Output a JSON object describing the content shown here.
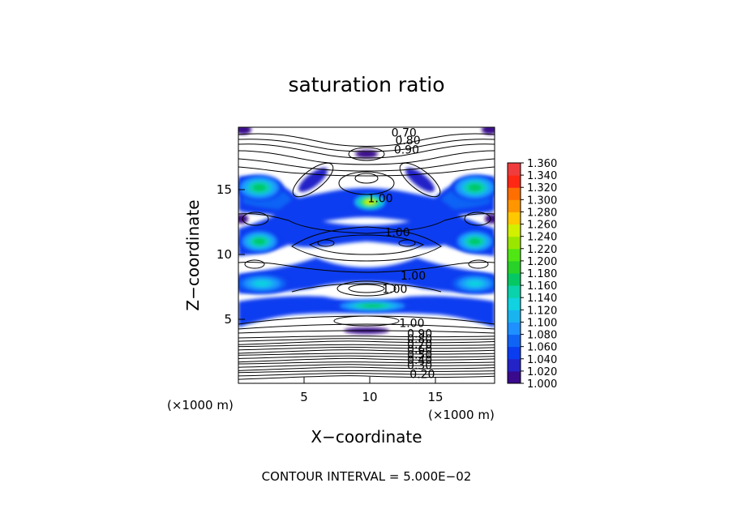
{
  "chart_data": {
    "type": "contour",
    "title": "saturation ratio",
    "xlabel": "X−coordinate",
    "ylabel": "Z−coordinate",
    "x_unit": "(×1000 m)",
    "z_unit": "(×1000 m)",
    "xlim": [
      0,
      19.5
    ],
    "ylim": [
      0,
      19.5
    ],
    "x_ticks": [
      "5",
      "10",
      "15"
    ],
    "y_ticks": [
      "5",
      "10",
      "15"
    ],
    "contour_interval_text": "CONTOUR INTERVAL = 5.000E−02",
    "colorbar": {
      "levels": [
        "1.000",
        "1.020",
        "1.040",
        "1.060",
        "1.080",
        "1.100",
        "1.120",
        "1.140",
        "1.160",
        "1.180",
        "1.200",
        "1.220",
        "1.240",
        "1.260",
        "1.280",
        "1.300",
        "1.320",
        "1.340",
        "1.360"
      ],
      "colors": [
        "#3a0a8c",
        "#2323c8",
        "#0a3cf0",
        "#0f64f5",
        "#1e90ff",
        "#19b4f0",
        "#10d2e0",
        "#0ad2aa",
        "#05c864",
        "#28d228",
        "#50e614",
        "#9be600",
        "#d2f000",
        "#ffc800",
        "#ff9600",
        "#ff6e00",
        "#ff2814",
        "#f03c3c",
        "#f08c8c"
      ]
    },
    "contour_labels": [
      {
        "text": "0.70",
        "x": 12.6,
        "z": 19.1
      },
      {
        "text": "0.80",
        "x": 12.9,
        "z": 18.5
      },
      {
        "text": "0.90",
        "x": 12.8,
        "z": 17.8
      },
      {
        "text": "1.00",
        "x": 10.8,
        "z": 14.1
      },
      {
        "text": "1.00",
        "x": 12.1,
        "z": 11.5
      },
      {
        "text": "1.00",
        "x": 13.3,
        "z": 8.2
      },
      {
        "text": "1.00",
        "x": 11.9,
        "z": 7.2
      },
      {
        "text": "1.00",
        "x": 13.2,
        "z": 4.6
      },
      {
        "text": "0.90",
        "x": 13.8,
        "z": 3.8
      },
      {
        "text": "0.80",
        "x": 13.8,
        "z": 3.4
      },
      {
        "text": "0.70",
        "x": 13.8,
        "z": 3.0
      },
      {
        "text": "0.60",
        "x": 13.8,
        "z": 2.6
      },
      {
        "text": "0.50",
        "x": 13.8,
        "z": 2.2
      },
      {
        "text": "0.40",
        "x": 13.8,
        "z": 1.8
      },
      {
        "text": "0.30",
        "x": 13.8,
        "z": 1.4
      },
      {
        "text": "0.20",
        "x": 14.0,
        "z": 0.7
      }
    ],
    "fill_regions": [
      {
        "xc": 1.6,
        "zc": 14.9,
        "rx": 1.8,
        "rz": 1.0,
        "level": 8
      },
      {
        "xc": 18.0,
        "zc": 14.9,
        "rx": 1.8,
        "rz": 1.0,
        "level": 8
      },
      {
        "xc": 10.0,
        "zc": 13.8,
        "rx": 1.4,
        "rz": 0.7,
        "level": 12
      },
      {
        "xc": 1.6,
        "zc": 10.8,
        "rx": 1.6,
        "rz": 0.9,
        "level": 8
      },
      {
        "xc": 18.0,
        "zc": 10.8,
        "rx": 1.6,
        "rz": 0.9,
        "level": 8
      },
      {
        "xc": 1.8,
        "zc": 7.6,
        "rx": 2.2,
        "rz": 0.8,
        "level": 6
      },
      {
        "xc": 18.0,
        "zc": 7.6,
        "rx": 2.0,
        "rz": 0.8,
        "level": 6
      },
      {
        "xc": 10.2,
        "zc": 5.9,
        "rx": 3.0,
        "rz": 0.5,
        "level": 8
      }
    ]
  }
}
